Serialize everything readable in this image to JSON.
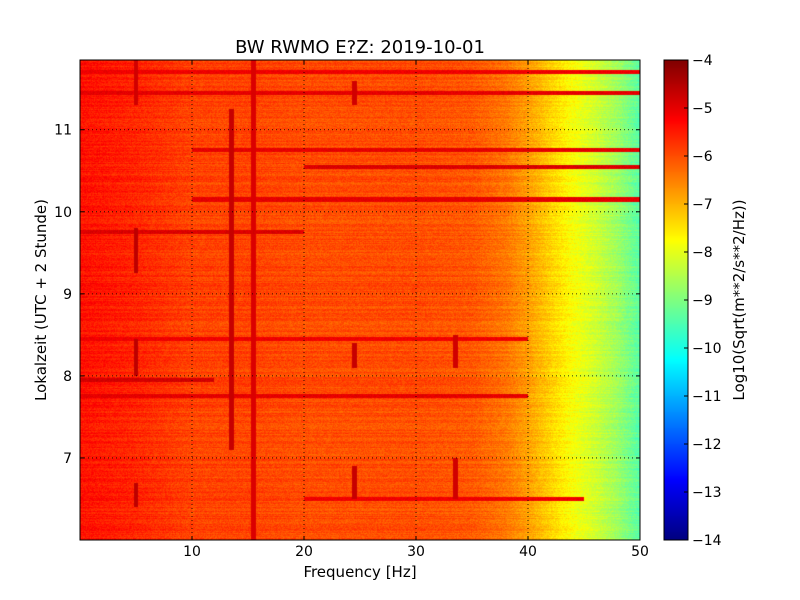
{
  "chart_data": {
    "type": "heatmap",
    "title": "BW RWMO E?Z: 2019-10-01",
    "xlabel": "Frequency [Hz]",
    "ylabel": "Lokalzeit (UTC + 2 Stunde)",
    "colorbar_label": "Log10(Sqrt(m**2/s**2/Hz))",
    "xlim": [
      0,
      50
    ],
    "ylim": [
      11.85,
      6.0
    ],
    "y_inverted": true,
    "clim": [
      -14,
      -4
    ],
    "colormap": "jet",
    "grid": true,
    "x_ticks": [
      10,
      20,
      30,
      40,
      50
    ],
    "y_ticks": [
      7,
      8,
      9,
      10,
      11
    ],
    "colorbar_ticks": [
      -4,
      -5,
      -6,
      -7,
      -8,
      -9,
      -10,
      -11,
      -12,
      -13,
      -14
    ],
    "spectrum_profile": {
      "frequency": [
        0,
        5,
        10,
        15,
        20,
        25,
        30,
        35,
        38,
        40,
        42,
        44,
        46,
        48,
        50
      ],
      "level": [
        -5.4,
        -5.6,
        -5.9,
        -5.9,
        -6.0,
        -6.0,
        -6.0,
        -6.1,
        -6.4,
        -6.8,
        -7.3,
        -7.8,
        -8.2,
        -8.7,
        -9.4
      ]
    },
    "spectral_lines": [
      {
        "frequency": 5.0,
        "time_range": [
          6.4,
          6.7
        ],
        "level": -4.6
      },
      {
        "frequency": 5.0,
        "time_range": [
          8.0,
          8.45
        ],
        "level": -4.6
      },
      {
        "frequency": 5.0,
        "time_range": [
          9.25,
          9.8
        ],
        "level": -4.6
      },
      {
        "frequency": 5.0,
        "time_range": [
          11.3,
          11.85
        ],
        "level": -4.8
      },
      {
        "frequency": 13.5,
        "time_range": [
          7.1,
          11.25
        ],
        "level": -4.7
      },
      {
        "frequency": 15.5,
        "time_range": [
          6.0,
          11.85
        ],
        "level": -4.9
      },
      {
        "frequency": 24.5,
        "time_range": [
          6.5,
          6.9
        ],
        "level": -4.7
      },
      {
        "frequency": 24.5,
        "time_range": [
          8.1,
          8.4
        ],
        "level": -4.7
      },
      {
        "frequency": 24.5,
        "time_range": [
          11.3,
          11.6
        ],
        "level": -4.8
      },
      {
        "frequency": 33.5,
        "time_range": [
          6.5,
          7.0
        ],
        "level": -4.8
      },
      {
        "frequency": 33.5,
        "time_range": [
          8.1,
          8.5
        ],
        "level": -4.8
      }
    ],
    "band_rows": [
      {
        "time": 6.5,
        "freq_range": [
          20,
          45
        ],
        "level": -5.1
      },
      {
        "time": 7.75,
        "freq_range": [
          0,
          40
        ],
        "level": -5.0
      },
      {
        "time": 7.95,
        "freq_range": [
          0,
          12
        ],
        "level": -4.8
      },
      {
        "time": 8.45,
        "freq_range": [
          0,
          40
        ],
        "level": -5.1
      },
      {
        "time": 9.75,
        "freq_range": [
          0,
          20
        ],
        "level": -4.9
      },
      {
        "time": 10.15,
        "freq_range": [
          10,
          50
        ],
        "level": -5.0
      },
      {
        "time": 10.55,
        "freq_range": [
          20,
          50
        ],
        "level": -4.9
      },
      {
        "time": 10.75,
        "freq_range": [
          10,
          50
        ],
        "level": -5.0
      },
      {
        "time": 11.45,
        "freq_range": [
          0,
          50
        ],
        "level": -5.0
      },
      {
        "time": 11.7,
        "freq_range": [
          0,
          50
        ],
        "level": -5.1
      }
    ]
  }
}
